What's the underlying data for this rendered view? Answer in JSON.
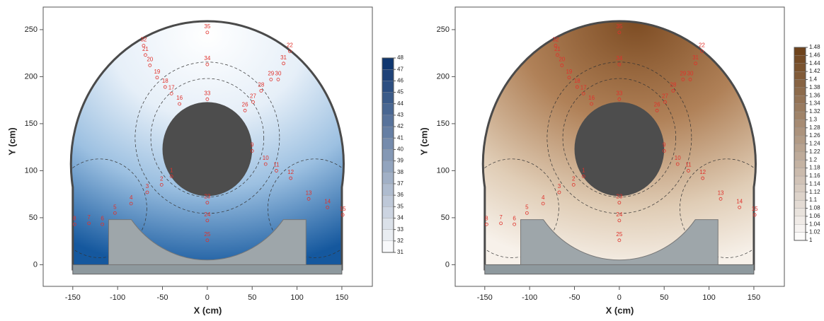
{
  "chart_data": [
    {
      "type": "contour",
      "x_label": "X (cm)",
      "y_label": "Y (cm)",
      "xlim": [
        -183,
        184
      ],
      "ylim": [
        -23,
        274
      ],
      "xticks": [
        -150,
        -100,
        -50,
        0,
        50,
        100,
        150
      ],
      "yticks": [
        0,
        50,
        100,
        150,
        200,
        250
      ],
      "colorbar": {
        "ticks": [
          31,
          32,
          33,
          34,
          35,
          36,
          37,
          38,
          39,
          40,
          41,
          42,
          43,
          44,
          45,
          46,
          47,
          48
        ],
        "colors": [
          "#ffffff",
          "#08306b"
        ]
      },
      "sensors": {
        "labels": [
          "1",
          "2",
          "3",
          "4",
          "5",
          "6",
          "7",
          "8",
          "9",
          "10",
          "11",
          "12",
          "13",
          "14",
          "15",
          "16",
          "17",
          "18",
          "19",
          "20",
          "21",
          "22",
          "23",
          "24",
          "25",
          "26",
          "27",
          "28",
          "29",
          "30",
          "31",
          "32",
          "33",
          "34",
          "35"
        ],
        "x": [
          -40,
          -51,
          -67,
          -85,
          -103,
          -117,
          -132,
          -148,
          50,
          65,
          77,
          93,
          113,
          134,
          151,
          -31,
          -40,
          -47,
          -56,
          -64,
          -69,
          92,
          0,
          0,
          0,
          42,
          51,
          60,
          71,
          79,
          85,
          -71,
          0,
          0,
          0
        ],
        "y": [
          94,
          85,
          77,
          65,
          55,
          43,
          44,
          43,
          121,
          107,
          100,
          92,
          70,
          61,
          53,
          171,
          182,
          189,
          199,
          212,
          223,
          227,
          66,
          47,
          26,
          164,
          173,
          185,
          197,
          197,
          214,
          233,
          176,
          213,
          247
        ]
      }
    },
    {
      "type": "contour",
      "x_label": "X (cm)",
      "y_label": "Y (cm)",
      "xlim": [
        -183,
        184
      ],
      "ylim": [
        -23,
        274
      ],
      "xticks": [
        -150,
        -100,
        -50,
        0,
        50,
        100,
        150
      ],
      "yticks": [
        0,
        50,
        100,
        150,
        200,
        250
      ],
      "colorbar": {
        "ticks": [
          1,
          1.02,
          1.04,
          1.06,
          1.08,
          1.1,
          1.12,
          1.14,
          1.16,
          1.18,
          1.2,
          1.22,
          1.24,
          1.26,
          1.28,
          1.3,
          1.32,
          1.34,
          1.36,
          1.38,
          1.4,
          1.42,
          1.44,
          1.46,
          1.48
        ],
        "colors": [
          "#ffffff",
          "#6b3f17"
        ]
      },
      "sensors": {
        "labels": [
          "1",
          "2",
          "3",
          "4",
          "5",
          "6",
          "7",
          "8",
          "9",
          "10",
          "11",
          "12",
          "13",
          "14",
          "15",
          "16",
          "17",
          "18",
          "19",
          "20",
          "21",
          "22",
          "23",
          "24",
          "25",
          "26",
          "27",
          "28",
          "29",
          "30",
          "31",
          "32",
          "33",
          "34",
          "35"
        ],
        "x": [
          -40,
          -51,
          -67,
          -85,
          -103,
          -117,
          -132,
          -148,
          50,
          65,
          77,
          93,
          113,
          134,
          151,
          -31,
          -40,
          -47,
          -56,
          -64,
          -69,
          92,
          0,
          0,
          0,
          42,
          51,
          60,
          71,
          79,
          85,
          -71,
          0,
          0,
          0
        ],
        "y": [
          94,
          85,
          77,
          65,
          55,
          43,
          44,
          43,
          121,
          107,
          100,
          92,
          70,
          61,
          53,
          171,
          182,
          189,
          199,
          212,
          223,
          227,
          66,
          47,
          26,
          164,
          173,
          185,
          197,
          197,
          214,
          233,
          176,
          213,
          247
        ]
      }
    }
  ]
}
